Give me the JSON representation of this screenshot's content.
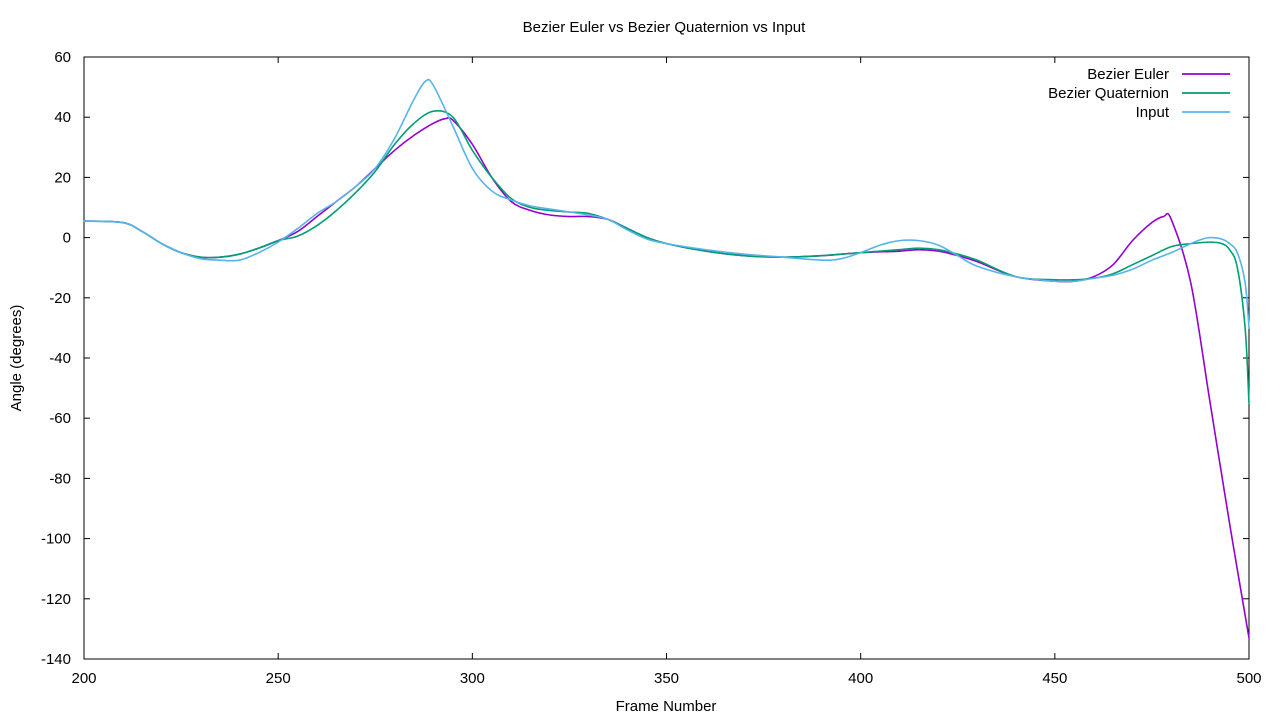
{
  "chart_data": {
    "type": "line",
    "title": "Bezier Euler vs Bezier Quaternion vs Input",
    "xlabel": "Frame Number",
    "ylabel": "Angle (degrees)",
    "xlim": [
      200,
      500
    ],
    "ylim": [
      -140,
      60
    ],
    "xticks": [
      200,
      250,
      300,
      350,
      400,
      450,
      500
    ],
    "yticks": [
      -140,
      -120,
      -100,
      -80,
      -60,
      -40,
      -20,
      0,
      20,
      40,
      60
    ],
    "grid": false,
    "legend_position": "top-right",
    "series": [
      {
        "name": "Bezier Euler",
        "color": "#9400d3",
        "x": [
          200,
          210,
          215,
          220,
          225,
          230,
          235,
          240,
          245,
          250,
          255,
          260,
          265,
          270,
          275,
          280,
          285,
          290,
          293,
          295,
          300,
          305,
          310,
          315,
          320,
          325,
          330,
          335,
          340,
          345,
          350,
          360,
          370,
          380,
          390,
          400,
          410,
          415,
          420,
          425,
          430,
          440,
          450,
          455,
          460,
          465,
          470,
          475,
          478,
          480,
          485,
          490,
          495,
          500
        ],
        "y": [
          5.5,
          5,
          2,
          -2,
          -5,
          -6.5,
          -6.5,
          -5.5,
          -3.5,
          -1,
          2,
          7,
          12,
          17,
          23,
          29,
          34,
          38,
          39.5,
          39,
          31,
          20,
          12,
          9,
          7.5,
          7,
          7,
          6,
          3,
          0,
          -2,
          -4.5,
          -6,
          -6.5,
          -6,
          -5,
          -4.5,
          -4,
          -4.5,
          -6,
          -8,
          -13,
          -14.5,
          -14.5,
          -13,
          -9,
          -1,
          5,
          7,
          6,
          -15,
          -55,
          -95,
          -133
        ]
      },
      {
        "name": "Bezier Quaternion",
        "color": "#009e73",
        "x": [
          200,
          210,
          215,
          220,
          225,
          230,
          235,
          240,
          245,
          250,
          255,
          260,
          265,
          270,
          275,
          280,
          285,
          290,
          295,
          300,
          305,
          310,
          315,
          320,
          325,
          330,
          335,
          340,
          345,
          350,
          360,
          370,
          380,
          390,
          400,
          410,
          415,
          420,
          425,
          430,
          440,
          450,
          455,
          460,
          465,
          470,
          475,
          480,
          485,
          490,
          493,
          495,
          497,
          499,
          500
        ],
        "y": [
          5.5,
          5,
          2,
          -2,
          -5,
          -6.5,
          -6.5,
          -5.5,
          -3.5,
          -1,
          0.5,
          4,
          9,
          15,
          22,
          31,
          38,
          42,
          40,
          29,
          20,
          13,
          10,
          9,
          8.5,
          8,
          6,
          3,
          0,
          -2,
          -4.5,
          -6,
          -6.5,
          -6,
          -5,
          -4,
          -3.5,
          -4,
          -5.5,
          -7.5,
          -13,
          -14,
          -14,
          -13.5,
          -12,
          -9,
          -6,
          -3,
          -2,
          -1.5,
          -2,
          -4,
          -10,
          -30,
          -55
        ]
      },
      {
        "name": "Input",
        "color": "#56b4e9",
        "x": [
          200,
          210,
          215,
          220,
          225,
          230,
          235,
          240,
          245,
          250,
          255,
          260,
          265,
          270,
          275,
          280,
          285,
          288,
          290,
          295,
          300,
          305,
          310,
          315,
          320,
          325,
          330,
          335,
          340,
          345,
          350,
          360,
          370,
          380,
          390,
          395,
          400,
          405,
          410,
          415,
          420,
          425,
          430,
          440,
          450,
          455,
          460,
          465,
          470,
          475,
          480,
          485,
          488,
          490,
          493,
          495,
          497,
          499,
          500
        ],
        "y": [
          5.5,
          5,
          2,
          -2,
          -5,
          -7,
          -7.5,
          -7.5,
          -5,
          -1.5,
          3,
          8,
          12,
          17,
          23,
          33,
          46,
          52,
          50.5,
          37,
          23,
          15.5,
          12.5,
          10.5,
          9.5,
          8.5,
          7.5,
          6,
          2.5,
          -0.5,
          -2,
          -4,
          -5.5,
          -6.5,
          -7.5,
          -7,
          -5,
          -2.5,
          -1,
          -1,
          -2.5,
          -6,
          -9.5,
          -13,
          -14.5,
          -14.5,
          -13.5,
          -12.5,
          -10.5,
          -7.5,
          -5,
          -2,
          -0.5,
          0,
          -0.5,
          -2,
          -5,
          -15,
          -30
        ]
      }
    ]
  }
}
